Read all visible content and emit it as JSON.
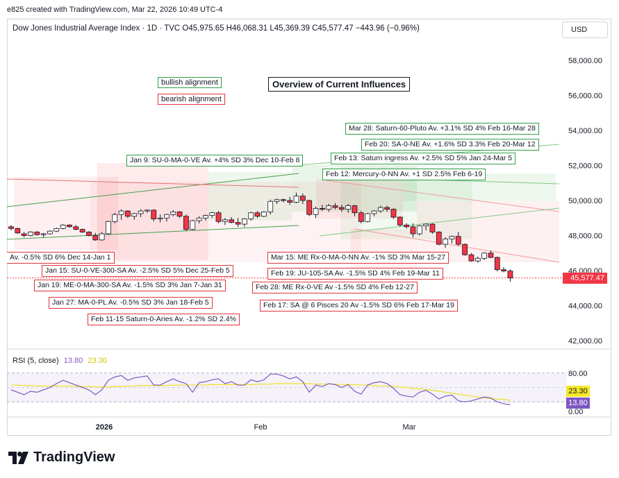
{
  "header": {
    "created_by": "e825 created with TradingView.com, Mar 22, 2026 10:49 UTC-4",
    "symbol_line": "Dow Jones Industrial Average Index · 1D · TVC  O45,975.65  H46,068.31  L45,369.39  C45,577.47  −443.96 (−0.96%)",
    "currency_button": "USD"
  },
  "legend": {
    "bullish": "bullish alignment",
    "bearish": "bearish alignment",
    "title": "Overview of Current Influences",
    "bullish_color": "#2e9e46",
    "bearish_color": "#e0323a"
  },
  "annotations_green": [
    "Mar 28: Saturn-60-Pluto Av. +3.1% SD 4% Feb 16-Mar 28",
    "Feb 20: SA-0-NE Av. +1.6% SD 3.3% Feb 20-Mar 12",
    "Feb 13: Saturn ingress Av. +2.5% SD 5% Jan 24-Mar 5",
    "Jan 9: SU-0-MA-0-VE Av. +4%  SD 3% Dec 10-Feb 8",
    "Feb 12: Mercury-0-NN Av. +1 SD 2.5% Feb 6-19"
  ],
  "annotations_red": [
    "Av. -0.5% SD 6% Dec 14-Jan 1",
    "Mar 15: ME Rx-0-MA-0-NN Av. -1% SD 3% Mar 15-27",
    "Jan 15: SU-0-VE-300-SA  Av. -2.5%   SD 5% Dec 25-Feb 5",
    "Feb 19: JU-105-SA Av. -1.5% SD 4% Feb 19-Mar 11",
    "Jan 19: ME-0-MA-300-SA  Av. -1.5%  SD 3% Jan 7-Jan 31",
    "Feb 28: ME Rx-0-VE Av -1.5% SD 4% Feb 12-27",
    "Jan 27: MA-0-PL  Av. -0.5%  SD 3% Jan 18-Feb 5",
    "Feb 17: SA @ 6 Pisces 20 Av -1.5% SD 6% Feb 17-Mar 19",
    "Feb 11-15 Saturn-0-Aries Av. -1.2% SD 2.4%"
  ],
  "price_axis": {
    "ticks": [
      "58,000.00",
      "56,000.00",
      "54,000.00",
      "52,000.00",
      "50,000.00",
      "48,000.00",
      "46,000.00",
      "44,000.00",
      "42,000.00"
    ],
    "last_price": "45,577.47"
  },
  "rsi": {
    "label": "RSI (5, close)",
    "value1": "13.80",
    "value2": "23.30",
    "ticks": [
      "80.00",
      "0.00"
    ],
    "value1_color": "#7e57c2",
    "value2_color": "#f0e020"
  },
  "time_axis": [
    "2026",
    "Feb",
    "Mar"
  ],
  "branding": {
    "logo": "TradingView"
  },
  "chart_data": {
    "type": "candlestick",
    "title": "Dow Jones Industrial Average Index · 1D · TVC",
    "ylim": [
      41500,
      59000
    ],
    "candles": [
      [
        48500,
        48600,
        48300,
        48400
      ],
      [
        48400,
        48450,
        48100,
        48150
      ],
      [
        48100,
        48200,
        47900,
        48000
      ],
      [
        48000,
        48250,
        47950,
        48200
      ],
      [
        48200,
        48250,
        48000,
        48050
      ],
      [
        48050,
        48150,
        47900,
        48100
      ],
      [
        48100,
        48300,
        48050,
        48250
      ],
      [
        48250,
        48450,
        48200,
        48400
      ],
      [
        48400,
        48650,
        48350,
        48600
      ],
      [
        48600,
        48650,
        48450,
        48500
      ],
      [
        48500,
        48600,
        48300,
        48350
      ],
      [
        48350,
        48400,
        48150,
        48200
      ],
      [
        48200,
        48250,
        47950,
        48000
      ],
      [
        48000,
        48150,
        47700,
        47750
      ],
      [
        47750,
        48200,
        47700,
        48100
      ],
      [
        48100,
        48850,
        48050,
        48800
      ],
      [
        48800,
        49300,
        48700,
        49200
      ],
      [
        49200,
        49500,
        48900,
        49400
      ],
      [
        49400,
        49450,
        49000,
        49100
      ],
      [
        49100,
        49300,
        48900,
        49250
      ],
      [
        49250,
        49500,
        49050,
        49400
      ],
      [
        49400,
        49500,
        49300,
        49450
      ],
      [
        49450,
        49500,
        48800,
        48950
      ],
      [
        48950,
        49200,
        48750,
        49000
      ],
      [
        49000,
        49250,
        48800,
        49200
      ],
      [
        49200,
        49450,
        49100,
        49350
      ],
      [
        49350,
        49400,
        49000,
        49100
      ],
      [
        49100,
        49200,
        48250,
        48350
      ],
      [
        48350,
        48900,
        48300,
        48850
      ],
      [
        48850,
        49100,
        48700,
        49000
      ],
      [
        49000,
        49200,
        48850,
        49150
      ],
      [
        49150,
        49350,
        49000,
        49300
      ],
      [
        49300,
        49400,
        48700,
        48800
      ],
      [
        48800,
        49000,
        48600,
        48900
      ],
      [
        48900,
        49050,
        48700,
        48750
      ],
      [
        48750,
        49000,
        48500,
        48650
      ],
      [
        48650,
        49000,
        48500,
        48950
      ],
      [
        48950,
        49350,
        48850,
        49300
      ],
      [
        49300,
        49400,
        49000,
        49100
      ],
      [
        49100,
        49400,
        49050,
        49350
      ],
      [
        49350,
        50050,
        49200,
        49950
      ],
      [
        49950,
        50100,
        49800,
        50050
      ],
      [
        50050,
        50100,
        49900,
        50000
      ],
      [
        50000,
        50200,
        49750,
        49900
      ],
      [
        49900,
        50450,
        49850,
        50250
      ],
      [
        50250,
        50400,
        49800,
        50000
      ],
      [
        50000,
        50050,
        49100,
        49200
      ],
      [
        49200,
        49650,
        49000,
        49550
      ],
      [
        49550,
        49750,
        49400,
        49500
      ],
      [
        49500,
        49800,
        49350,
        49700
      ],
      [
        49700,
        49850,
        49500,
        49600
      ],
      [
        49600,
        49750,
        49350,
        49500
      ],
      [
        49500,
        49800,
        49300,
        49700
      ],
      [
        49700,
        49750,
        49100,
        49300
      ],
      [
        49300,
        49400,
        48700,
        48800
      ],
      [
        48800,
        49300,
        48750,
        49250
      ],
      [
        49250,
        49450,
        49100,
        49400
      ],
      [
        49400,
        49700,
        49300,
        49600
      ],
      [
        49600,
        49700,
        49350,
        49500
      ],
      [
        49500,
        49550,
        48950,
        49050
      ],
      [
        49050,
        49100,
        48500,
        48600
      ],
      [
        48600,
        48700,
        48400,
        48500
      ],
      [
        48500,
        48700,
        47900,
        48100
      ],
      [
        48100,
        48600,
        48000,
        48550
      ],
      [
        48550,
        48700,
        48300,
        48650
      ],
      [
        48650,
        48700,
        48100,
        48200
      ],
      [
        48200,
        48250,
        47450,
        47500
      ],
      [
        47500,
        47900,
        47300,
        47800
      ],
      [
        47800,
        48000,
        47550,
        47950
      ],
      [
        47950,
        48200,
        47400,
        47500
      ],
      [
        47500,
        47550,
        46850,
        46900
      ],
      [
        46900,
        47000,
        46500,
        46550
      ],
      [
        46550,
        46800,
        46450,
        46700
      ],
      [
        46700,
        47050,
        46600,
        47000
      ],
      [
        47000,
        47150,
        46700,
        46750
      ],
      [
        46750,
        46800,
        45950,
        46050
      ],
      [
        46050,
        46200,
        45900,
        45975
      ],
      [
        45975,
        46068,
        45369,
        45577
      ]
    ],
    "rsi_values": [
      45,
      40,
      35,
      42,
      40,
      45,
      50,
      58,
      65,
      60,
      55,
      50,
      45,
      35,
      45,
      65,
      72,
      75,
      65,
      70,
      72,
      74,
      55,
      55,
      62,
      68,
      62,
      58,
      40,
      60,
      62,
      66,
      68,
      58,
      62,
      55,
      55,
      66,
      62,
      66,
      78,
      78,
      74,
      68,
      72,
      62,
      40,
      55,
      52,
      58,
      56,
      50,
      56,
      42,
      36,
      55,
      60,
      62,
      58,
      48,
      35,
      32,
      30,
      40,
      44,
      36,
      26,
      32,
      34,
      22,
      20,
      22,
      26,
      30,
      28,
      20,
      16,
      13.8
    ],
    "rsi_ma_values": [
      55,
      55,
      54,
      54,
      53,
      53,
      53,
      53,
      53,
      53,
      52,
      52,
      52,
      51,
      51,
      51,
      52,
      52,
      53,
      53,
      54,
      54,
      54,
      54,
      54,
      55,
      55,
      55,
      55,
      55,
      55,
      56,
      56,
      56,
      56,
      56,
      56,
      56,
      57,
      57,
      57,
      58,
      58,
      58,
      58,
      58,
      58,
      57,
      57,
      57,
      57,
      56,
      56,
      56,
      55,
      55,
      54,
      53,
      53,
      52,
      51,
      50,
      48,
      47,
      46,
      44,
      42,
      40,
      38,
      36,
      34,
      32,
      30,
      28,
      27,
      26,
      25,
      23.3
    ],
    "rsi_ylim": [
      0,
      100
    ]
  }
}
